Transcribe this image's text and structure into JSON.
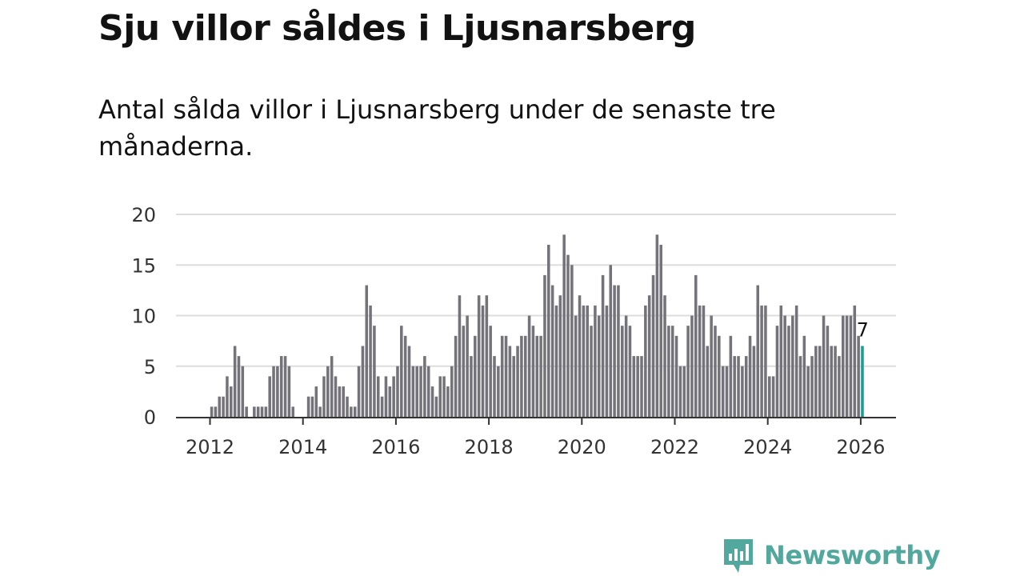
{
  "header": {
    "title": "Sju villor såldes i Ljusnarsberg",
    "subtitle": "Antal sålda villor i Ljusnarsberg under de senaste tre månaderna."
  },
  "brand": {
    "name": "Newsworthy",
    "color": "#52a89c"
  },
  "colors": {
    "bar": "#75737a",
    "highlight": "#1a9e8f",
    "grid": "#dddddd",
    "axis": "#333333"
  },
  "chart_data": {
    "type": "bar",
    "title": "Sju villor såldes i Ljusnarsberg",
    "xlabel": "",
    "ylabel": "",
    "ylim": [
      0,
      20
    ],
    "yticks": [
      "0",
      "5",
      "10",
      "15",
      "20"
    ],
    "xticks": [
      "2012",
      "2014",
      "2016",
      "2018",
      "2020",
      "2022",
      "2024",
      "2026"
    ],
    "x_start": "2012-01",
    "highlight_label": "7",
    "values": [
      1,
      1,
      2,
      2,
      4,
      3,
      7,
      6,
      5,
      1,
      0,
      1,
      1,
      1,
      1,
      4,
      5,
      5,
      6,
      6,
      5,
      1,
      0,
      0,
      0,
      2,
      2,
      3,
      1,
      4,
      5,
      6,
      4,
      3,
      3,
      2,
      1,
      1,
      5,
      7,
      13,
      11,
      9,
      4,
      2,
      4,
      3,
      4,
      5,
      9,
      8,
      7,
      5,
      5,
      5,
      6,
      5,
      3,
      2,
      4,
      4,
      3,
      5,
      8,
      12,
      9,
      10,
      6,
      8,
      12,
      11,
      12,
      9,
      6,
      5,
      8,
      8,
      7,
      6,
      7,
      8,
      8,
      10,
      9,
      8,
      8,
      14,
      17,
      13,
      11,
      12,
      18,
      16,
      15,
      10,
      12,
      11,
      11,
      9,
      11,
      10,
      14,
      11,
      15,
      13,
      13,
      9,
      10,
      9,
      6,
      6,
      6,
      11,
      12,
      14,
      18,
      17,
      12,
      9,
      9,
      8,
      5,
      5,
      9,
      10,
      14,
      11,
      11,
      7,
      10,
      9,
      8,
      5,
      5,
      8,
      6,
      6,
      5,
      6,
      8,
      7,
      13,
      11,
      11,
      4,
      4,
      9,
      11,
      10,
      9,
      10,
      11,
      6,
      8,
      5,
      6,
      7,
      7,
      10,
      9,
      7,
      7,
      6,
      10,
      10,
      10,
      11,
      8,
      7
    ]
  }
}
